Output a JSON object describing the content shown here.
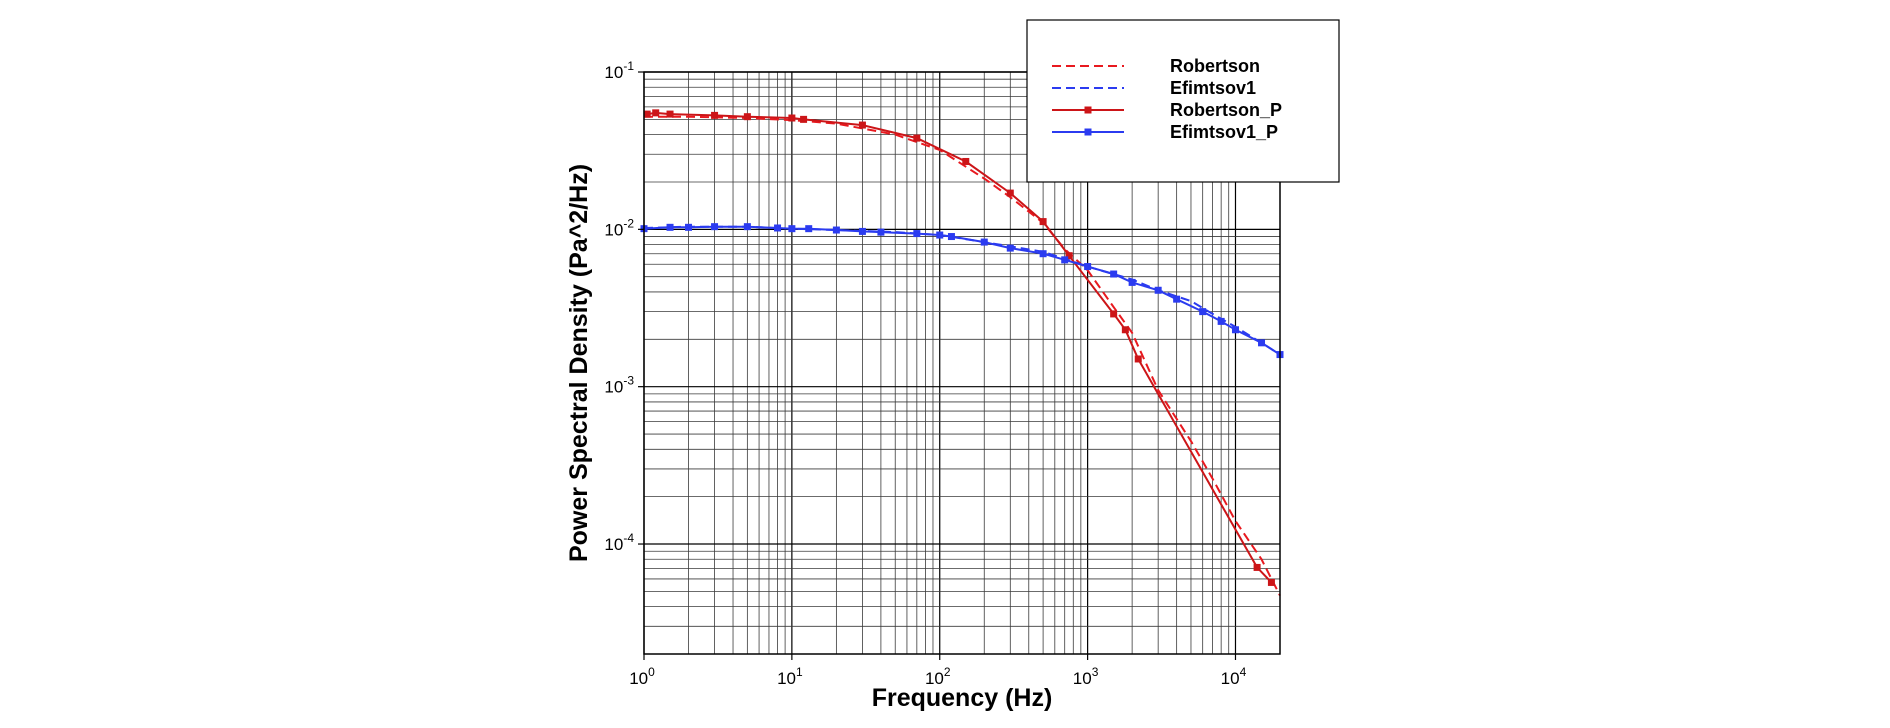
{
  "chart_data": {
    "type": "line",
    "xlabel": "Frequency (Hz)",
    "ylabel": "Power Spectral Density (Pa^2/Hz)",
    "xscale": "log",
    "yscale": "log",
    "xlim": [
      1,
      20000
    ],
    "ylim": [
      2e-05,
      0.1
    ],
    "grid": true,
    "legend_position": "top-right",
    "x_ticks": [
      {
        "base": "10",
        "exp": "0",
        "value": 1
      },
      {
        "base": "10",
        "exp": "1",
        "value": 10
      },
      {
        "base": "10",
        "exp": "2",
        "value": 100
      },
      {
        "base": "10",
        "exp": "3",
        "value": 1000
      },
      {
        "base": "10",
        "exp": "4",
        "value": 10000
      }
    ],
    "y_ticks": [
      {
        "base": "10",
        "exp": "-1",
        "value": 0.1
      },
      {
        "base": "10",
        "exp": "-2",
        "value": 0.01
      },
      {
        "base": "10",
        "exp": "-3",
        "value": 0.001
      },
      {
        "base": "10",
        "exp": "-4",
        "value": 0.0001
      }
    ],
    "series": [
      {
        "name": "Robertson",
        "color": "#e8191f",
        "style": "dashed",
        "markers": false,
        "points": [
          [
            1,
            0.052
          ],
          [
            2,
            0.052
          ],
          [
            5,
            0.051
          ],
          [
            10,
            0.0495
          ],
          [
            20,
            0.047
          ],
          [
            50,
            0.04
          ],
          [
            100,
            0.032
          ],
          [
            200,
            0.021
          ],
          [
            300,
            0.016
          ],
          [
            500,
            0.011
          ],
          [
            700,
            0.0075
          ],
          [
            1000,
            0.0055
          ],
          [
            1500,
            0.0032
          ],
          [
            2000,
            0.0022
          ],
          [
            3000,
            0.00095
          ],
          [
            5000,
            0.00045
          ],
          [
            7000,
            0.00026
          ],
          [
            10000,
            0.00014
          ],
          [
            15000,
            8e-05
          ],
          [
            20000,
            4.7e-05
          ]
        ]
      },
      {
        "name": "Efimtsov1",
        "color": "#2b3bf0",
        "style": "dashed",
        "markers": false,
        "points": [
          [
            1,
            0.0102
          ],
          [
            2,
            0.0104
          ],
          [
            5,
            0.0104
          ],
          [
            10,
            0.0101
          ],
          [
            20,
            0.0099
          ],
          [
            50,
            0.0096
          ],
          [
            100,
            0.0092
          ],
          [
            200,
            0.0083
          ],
          [
            500,
            0.0072
          ],
          [
            700,
            0.0065
          ],
          [
            1000,
            0.0058
          ],
          [
            2000,
            0.0048
          ],
          [
            3000,
            0.0041
          ],
          [
            5000,
            0.0035
          ],
          [
            7000,
            0.0029
          ],
          [
            10000,
            0.0024
          ],
          [
            15000,
            0.0019
          ],
          [
            20000,
            0.0016
          ]
        ]
      },
      {
        "name": "Robertson_P",
        "color": "#cc1518",
        "style": "solid",
        "markers": true,
        "points": [
          [
            1.05,
            0.054
          ],
          [
            1.2,
            0.055
          ],
          [
            1.5,
            0.054
          ],
          [
            3,
            0.053
          ],
          [
            5,
            0.052
          ],
          [
            10,
            0.051
          ],
          [
            12,
            0.05
          ],
          [
            30,
            0.046
          ],
          [
            70,
            0.038
          ],
          [
            150,
            0.027
          ],
          [
            300,
            0.017
          ],
          [
            500,
            0.0112
          ],
          [
            750,
            0.0068
          ],
          [
            1500,
            0.0029
          ],
          [
            1800,
            0.0023
          ],
          [
            2200,
            0.0015
          ],
          [
            14000,
            7.1e-05
          ],
          [
            17500,
            5.7e-05
          ]
        ]
      },
      {
        "name": "Efimtsov1_P",
        "color": "#2b3bf0",
        "style": "solid",
        "markers": true,
        "points": [
          [
            1,
            0.0101
          ],
          [
            1.5,
            0.0103
          ],
          [
            2,
            0.0103
          ],
          [
            3,
            0.0104
          ],
          [
            5,
            0.0104
          ],
          [
            8,
            0.0102
          ],
          [
            10,
            0.0101
          ],
          [
            13,
            0.0101
          ],
          [
            20,
            0.0099
          ],
          [
            30,
            0.0097
          ],
          [
            40,
            0.0096
          ],
          [
            70,
            0.0094
          ],
          [
            100,
            0.0092
          ],
          [
            120,
            0.009
          ],
          [
            200,
            0.0083
          ],
          [
            300,
            0.0076
          ],
          [
            500,
            0.007
          ],
          [
            700,
            0.0064
          ],
          [
            1000,
            0.0058
          ],
          [
            1500,
            0.0052
          ],
          [
            2000,
            0.0046
          ],
          [
            3000,
            0.0041
          ],
          [
            4000,
            0.0036
          ],
          [
            6000,
            0.003
          ],
          [
            8000,
            0.0026
          ],
          [
            10000,
            0.0023
          ],
          [
            15000,
            0.0019
          ],
          [
            20000,
            0.0016
          ]
        ]
      }
    ]
  }
}
